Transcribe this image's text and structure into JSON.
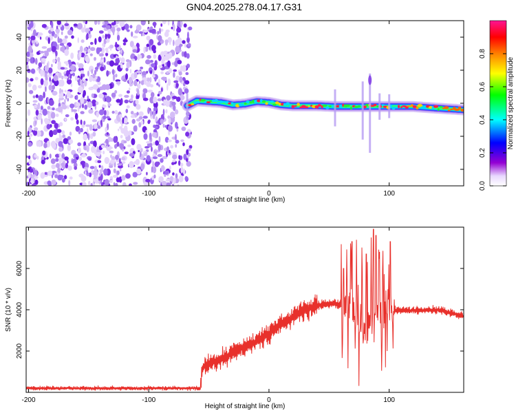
{
  "title": "GN04.2025.278.04.17.G31",
  "chart_data": [
    {
      "type": "heatmap",
      "xlabel": "Height of straight line (km)",
      "ylabel": "Frequency (Hz)",
      "xlim": [
        -202,
        162
      ],
      "ylim": [
        -50,
        50
      ],
      "x_ticks": [
        "-200",
        "-100",
        "0",
        "100"
      ],
      "y_ticks": [
        "-40",
        "-20",
        "0",
        "20",
        "40"
      ],
      "noise_region_x": [
        -202,
        -65
      ],
      "ridge": [
        {
          "x": -68,
          "f": -1.5
        },
        {
          "x": -60,
          "f": 1.5
        },
        {
          "x": -50,
          "f": 1.0
        },
        {
          "x": -40,
          "f": 0.5
        },
        {
          "x": -30,
          "f": -1.0
        },
        {
          "x": -20,
          "f": -0.5
        },
        {
          "x": -10,
          "f": 1.0
        },
        {
          "x": 0,
          "f": 0.5
        },
        {
          "x": 10,
          "f": -1.0
        },
        {
          "x": 20,
          "f": -1.5
        },
        {
          "x": 40,
          "f": -1.5
        },
        {
          "x": 55,
          "f": -2.0
        },
        {
          "x": 70,
          "f": -2.0
        },
        {
          "x": 85,
          "f": -2.0
        },
        {
          "x": 100,
          "f": -2.0
        },
        {
          "x": 120,
          "f": -2.0
        },
        {
          "x": 140,
          "f": -3.0
        },
        {
          "x": 162,
          "f": -4.0
        }
      ],
      "colorbar": {
        "label": "Normalized spectral amplitude",
        "range": [
          0,
          1
        ],
        "ticks": [
          "0.0",
          "0.2",
          "0.4",
          "0.6",
          "0.8"
        ],
        "colors": [
          "#ffffff",
          "#9400d3",
          "#0000ff",
          "#00ffff",
          "#00ff00",
          "#ffff00",
          "#ff8000",
          "#ff0000",
          "#ff1493"
        ]
      }
    },
    {
      "type": "line",
      "xlabel": "Height of straight line (km)",
      "ylabel": "SNR (10 * v/v)",
      "xlim": [
        -202,
        162
      ],
      "ylim": [
        0,
        8000
      ],
      "x_ticks": [
        "-200",
        "-100",
        "0",
        "100"
      ],
      "y_ticks": [
        "2000",
        "4000",
        "6000"
      ],
      "color": "#e8302b",
      "envelope": [
        {
          "x": -202,
          "y": 200
        },
        {
          "x": -100,
          "y": 200
        },
        {
          "x": -57,
          "y": 200
        },
        {
          "x": -55,
          "y": 1200
        },
        {
          "x": -40,
          "y": 1600
        },
        {
          "x": -20,
          "y": 2200
        },
        {
          "x": 0,
          "y": 2800
        },
        {
          "x": 10,
          "y": 3300
        },
        {
          "x": 25,
          "y": 3900
        },
        {
          "x": 40,
          "y": 4200
        },
        {
          "x": 55,
          "y": 4300
        },
        {
          "x": 65,
          "y": 4200
        },
        {
          "x": 70,
          "y": 4100
        },
        {
          "x": 80,
          "y": 3000
        },
        {
          "x": 88,
          "y": 4000
        },
        {
          "x": 100,
          "y": 4000
        },
        {
          "x": 120,
          "y": 3950
        },
        {
          "x": 140,
          "y": 4000
        },
        {
          "x": 162,
          "y": 3700
        }
      ],
      "spikes": [
        {
          "x": 62,
          "y": 6000
        },
        {
          "x": 69,
          "y": 7300
        },
        {
          "x": 81,
          "y": 6700
        },
        {
          "x": 85,
          "y": 7500
        },
        {
          "x": 87,
          "y": 7900
        },
        {
          "x": 89,
          "y": 7600
        },
        {
          "x": 92,
          "y": 6800
        },
        {
          "x": 101,
          "y": 7300
        }
      ]
    }
  ]
}
